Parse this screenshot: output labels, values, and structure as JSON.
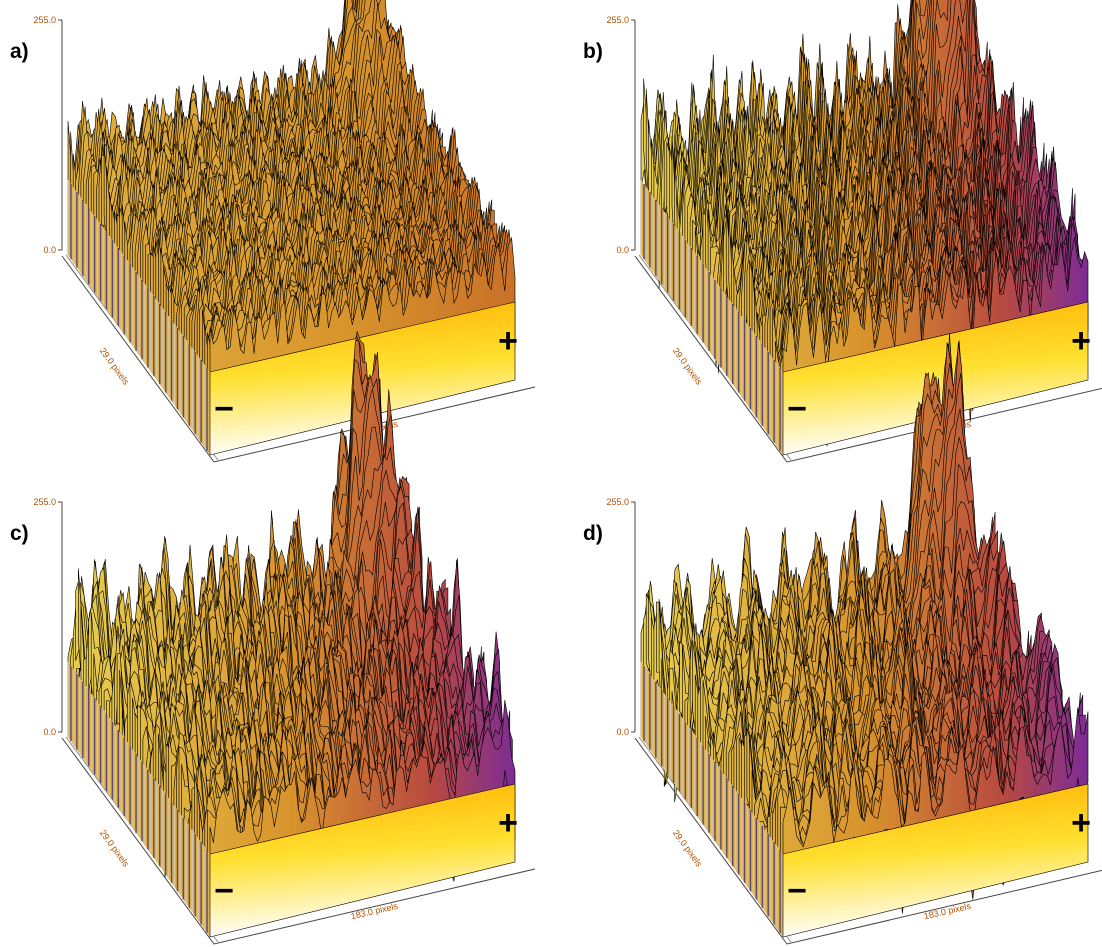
{
  "panels": [
    {
      "label": "a)",
      "z_top": "255.0",
      "z_bottom": "0.0",
      "depth_label": "29.0 pixels",
      "width_label": "183.0 pixels",
      "plus": "+",
      "minus": "−"
    },
    {
      "label": "b)",
      "z_top": "255.0",
      "z_bottom": "0.0",
      "depth_label": "29.0 pixels",
      "width_label": "183.0 pixels",
      "plus": "+",
      "minus": "−"
    },
    {
      "label": "c)",
      "z_top": "255.0",
      "z_bottom": "0.0",
      "depth_label": "29.0 pixels",
      "width_label": "183.0 pixels",
      "plus": "+",
      "minus": "−"
    },
    {
      "label": "d)",
      "z_top": "255.0",
      "z_bottom": "0.0",
      "depth_label": "29.0 pixels",
      "width_label": "183.0 pixels",
      "plus": "+",
      "minus": "−"
    }
  ]
}
